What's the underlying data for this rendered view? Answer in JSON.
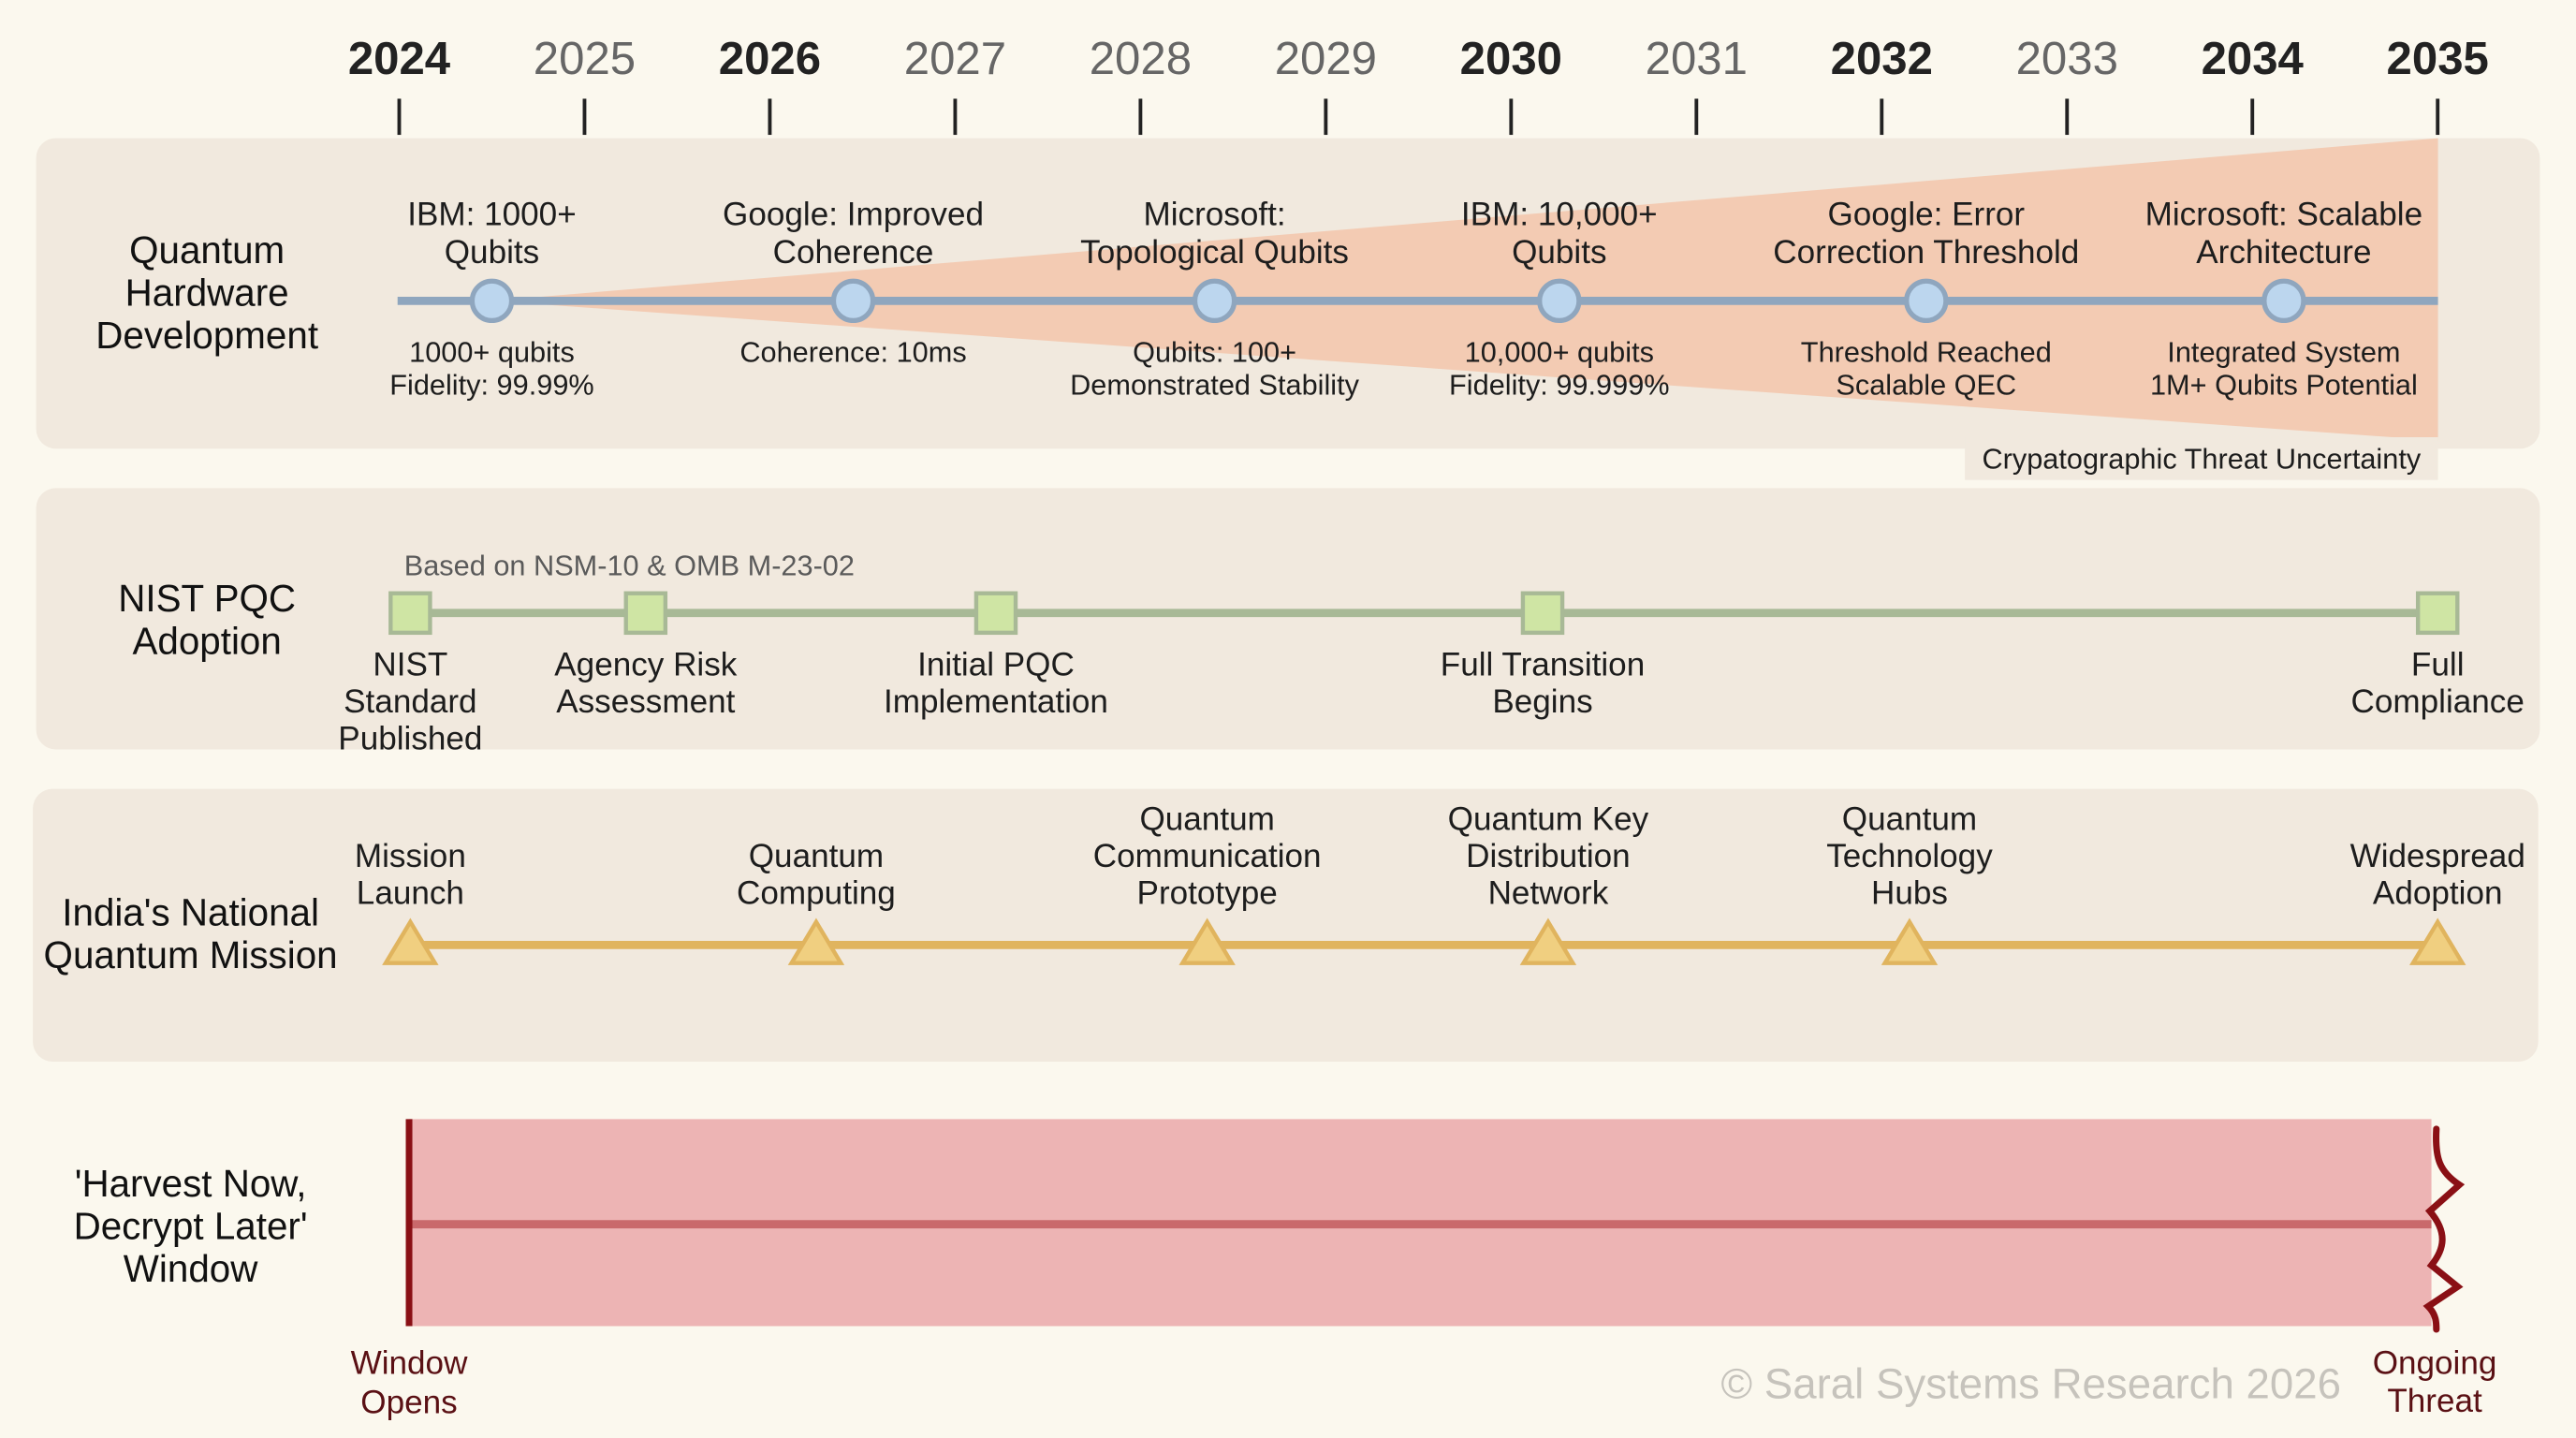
{
  "years": [
    {
      "label": "2024",
      "bold": true
    },
    {
      "label": "2025",
      "bold": false
    },
    {
      "label": "2026",
      "bold": true
    },
    {
      "label": "2027",
      "bold": false
    },
    {
      "label": "2028",
      "bold": false
    },
    {
      "label": "2029",
      "bold": false
    },
    {
      "label": "2030",
      "bold": true
    },
    {
      "label": "2031",
      "bold": false
    },
    {
      "label": "2032",
      "bold": true
    },
    {
      "label": "2033",
      "bold": false
    },
    {
      "label": "2034",
      "bold": true
    },
    {
      "label": "2035",
      "bold": true
    }
  ],
  "hardware": {
    "title": [
      "Quantum",
      "Hardware",
      "Development"
    ],
    "uncertainty_label": "Crypatographic Threat Uncertainty",
    "milestones": [
      {
        "year": 2024.5,
        "title": [
          "IBM: 1000+",
          "Qubits"
        ],
        "detail": [
          "1000+ qubits",
          "Fidelity: 99.99%"
        ]
      },
      {
        "year": 2026.45,
        "title": [
          "Google: Improved",
          "Coherence"
        ],
        "detail": [
          "Coherence: 10ms"
        ]
      },
      {
        "year": 2028.4,
        "title": [
          "Microsoft:",
          "Topological Qubits"
        ],
        "detail": [
          "Qubits: 100+",
          "Demonstrated Stability"
        ]
      },
      {
        "year": 2030.26,
        "title": [
          "IBM: 10,000+",
          "Qubits"
        ],
        "detail": [
          "10,000+ qubits",
          "Fidelity: 99.999%"
        ]
      },
      {
        "year": 2032.24,
        "title": [
          "Google: Error",
          "Correction Threshold"
        ],
        "detail": [
          "Threshold Reached",
          "Scalable QEC"
        ]
      },
      {
        "year": 2034.17,
        "title": [
          "Microsoft: Scalable",
          "Architecture"
        ],
        "detail": [
          "Integrated System",
          "1M+ Qubits Potential"
        ]
      }
    ]
  },
  "nist": {
    "title": [
      "NIST PQC",
      "Adoption"
    ],
    "note": "Based on NSM-10 & OMB M-23-02",
    "milestones": [
      {
        "year": 2024.06,
        "label": [
          "NIST",
          "Standard",
          "Published"
        ]
      },
      {
        "year": 2025.33,
        "label": [
          "Agency Risk",
          "Assessment"
        ]
      },
      {
        "year": 2027.22,
        "label": [
          "Initial PQC",
          "Implementation"
        ]
      },
      {
        "year": 2030.17,
        "label": [
          "Full Transition",
          "Begins"
        ]
      },
      {
        "year": 2035,
        "label": [
          "Full",
          "Compliance"
        ]
      }
    ]
  },
  "india": {
    "title": [
      "India's National",
      "Quantum Mission"
    ],
    "milestones": [
      {
        "year": 2024.06,
        "label": [
          "Mission",
          "Launch"
        ]
      },
      {
        "year": 2026.25,
        "label": [
          "Quantum",
          "Computing"
        ]
      },
      {
        "year": 2028.36,
        "label": [
          "Quantum",
          "Communication",
          "Prototype"
        ]
      },
      {
        "year": 2030.2,
        "label": [
          "Quantum Key",
          "Distribution",
          "Network"
        ]
      },
      {
        "year": 2032.15,
        "label": [
          "Quantum",
          "Technology",
          "Hubs"
        ]
      },
      {
        "year": 2035,
        "label": [
          "Widespread",
          "Adoption"
        ]
      }
    ]
  },
  "harvest": {
    "title": [
      "'Harvest Now,",
      "Decrypt Later'",
      "Window"
    ],
    "start_label": [
      "Window",
      "Opens"
    ],
    "end_label": [
      "Ongoing",
      "Threat"
    ]
  },
  "watermark": "© Saral Systems Research 2026",
  "colors": {
    "panel": "#f1e9de",
    "hardware_line": "#8fa6be",
    "hardware_node": "#bcd6ee",
    "wedge": "#f4c3a8",
    "nist_line": "#a8b996",
    "nist_node": "#cfe5a4",
    "india_line": "#e0b45e",
    "india_node": "#f0cf80",
    "harvest_band": "#edb4b4",
    "harvest_line": "#c9696b",
    "harvest_edge": "#8a1015"
  }
}
